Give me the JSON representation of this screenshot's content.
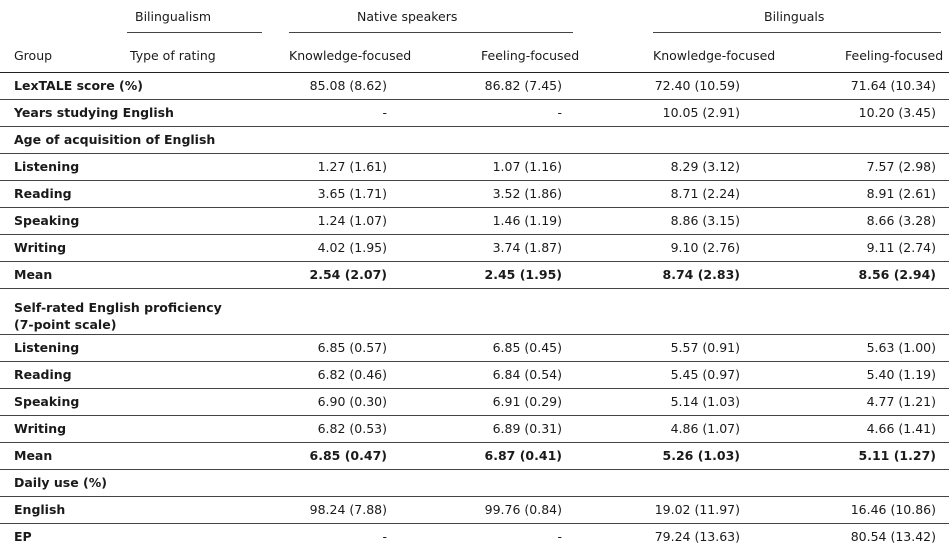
{
  "header": {
    "bilingualism": "Bilingualism",
    "native_speakers": "Native speakers",
    "bilinguals": "Bilinguals",
    "group": "Group",
    "type_of_rating": "Type of rating",
    "knowledge_focused": "Knowledge-focused",
    "feeling_focused": "Feeling-focused"
  },
  "rows": [
    {
      "label": "LexTALE score (%)",
      "n_know": "85.08 (8.62)",
      "n_feel": "86.82 (7.45)",
      "b_know": "72.40 (10.59)",
      "b_feel": "71.64 (10.34)"
    },
    {
      "label": "Years studying English",
      "n_know": "-",
      "n_feel": "-",
      "b_know": "10.05 (2.91)",
      "b_feel": "10.20 (3.45)"
    },
    {
      "label": "Age of acquisition of English"
    },
    {
      "label": "Listening",
      "n_know": "1.27 (1.61)",
      "n_feel": "1.07 (1.16)",
      "b_know": "8.29 (3.12)",
      "b_feel": "7.57 (2.98)"
    },
    {
      "label": "Reading",
      "n_know": "3.65 (1.71)",
      "n_feel": "3.52 (1.86)",
      "b_know": "8.71 (2.24)",
      "b_feel": "8.91 (2.61)"
    },
    {
      "label": "Speaking",
      "n_know": "1.24 (1.07)",
      "n_feel": "1.46 (1.19)",
      "b_know": "8.86 (3.15)",
      "b_feel": "8.66 (3.28)"
    },
    {
      "label": "Writing",
      "n_know": "4.02 (1.95)",
      "n_feel": "3.74 (1.87)",
      "b_know": "9.10 (2.76)",
      "b_feel": "9.11 (2.74)"
    },
    {
      "label": "Mean",
      "n_know": "2.54 (2.07)",
      "n_feel": "2.45 (1.95)",
      "b_know": "8.74 (2.83)",
      "b_feel": "8.56 (2.94)"
    },
    {
      "label": "Self-rated English proficiency",
      "label2": "(7-point scale)"
    },
    {
      "label": "Listening",
      "n_know": "6.85 (0.57)",
      "n_feel": "6.85 (0.45)",
      "b_know": "5.57 (0.91)",
      "b_feel": "5.63 (1.00)"
    },
    {
      "label": "Reading",
      "n_know": "6.82 (0.46)",
      "n_feel": "6.84 (0.54)",
      "b_know": "5.45 (0.97)",
      "b_feel": "5.40 (1.19)"
    },
    {
      "label": "Speaking",
      "n_know": "6.90 (0.30)",
      "n_feel": "6.91 (0.29)",
      "b_know": "5.14 (1.03)",
      "b_feel": "4.77 (1.21)"
    },
    {
      "label": "Writing",
      "n_know": "6.82 (0.53)",
      "n_feel": "6.89 (0.31)",
      "b_know": "4.86 (1.07)",
      "b_feel": "4.66 (1.41)"
    },
    {
      "label": "Mean",
      "n_know": "6.85 (0.47)",
      "n_feel": "6.87 (0.41)",
      "b_know": "5.26 (1.03)",
      "b_feel": "5.11 (1.27)"
    },
    {
      "label": "Daily use (%)"
    },
    {
      "label": "English",
      "n_know": "98.24 (7.88)",
      "n_feel": "99.76 (0.84)",
      "b_know": "19.02 (11.97)",
      "b_feel": "16.46 (10.86)"
    },
    {
      "label": "EP",
      "n_know": "-",
      "n_feel": "-",
      "b_know": "79.24 (13.63)",
      "b_feel": "80.54 (13.42)"
    }
  ]
}
